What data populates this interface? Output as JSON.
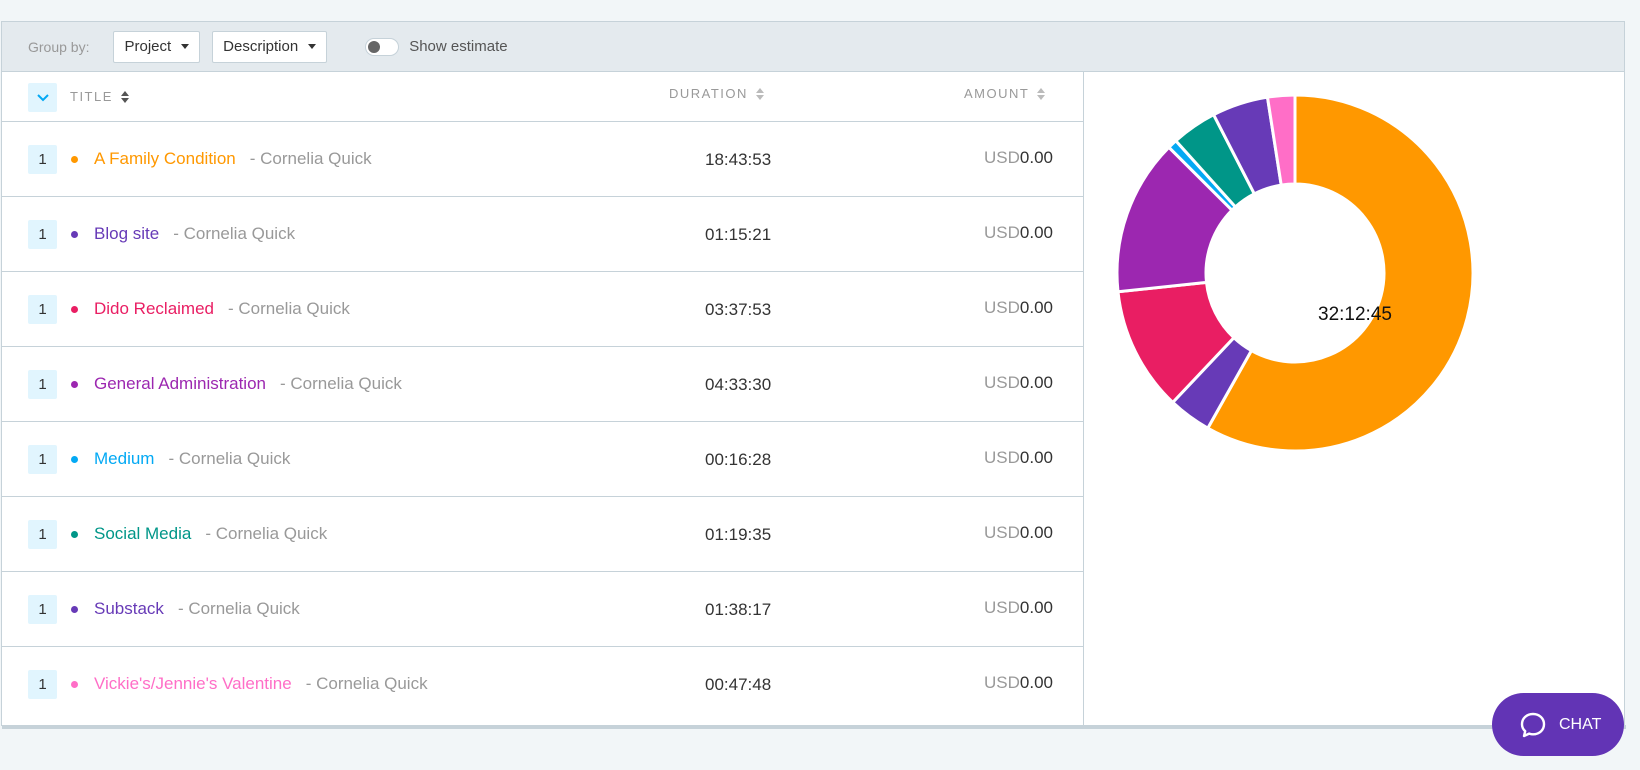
{
  "toolbar": {
    "group_by_label": "Group by:",
    "group_primary": "Project",
    "group_secondary": "Description",
    "show_estimate_label": "Show estimate"
  },
  "table": {
    "headers": {
      "title": "TITLE",
      "duration": "DURATION",
      "amount": "AMOUNT"
    },
    "rows": [
      {
        "count": "1",
        "project": "A Family Condition",
        "client": "- Cornelia Quick",
        "duration": "18:43:53",
        "currency": "USD",
        "amount": "0.00",
        "color": "#ff9800"
      },
      {
        "count": "1",
        "project": "Blog site",
        "client": "- Cornelia Quick",
        "duration": "01:15:21",
        "currency": "USD",
        "amount": "0.00",
        "color": "#673ab7"
      },
      {
        "count": "1",
        "project": "Dido Reclaimed",
        "client": "- Cornelia Quick",
        "duration": "03:37:53",
        "currency": "USD",
        "amount": "0.00",
        "color": "#e91e63"
      },
      {
        "count": "1",
        "project": "General Administration",
        "client": "- Cornelia Quick",
        "duration": "04:33:30",
        "currency": "USD",
        "amount": "0.00",
        "color": "#9c27b0"
      },
      {
        "count": "1",
        "project": "Medium",
        "client": "- Cornelia Quick",
        "duration": "00:16:28",
        "currency": "USD",
        "amount": "0.00",
        "color": "#03a9f4"
      },
      {
        "count": "1",
        "project": "Social Media",
        "client": "- Cornelia Quick",
        "duration": "01:19:35",
        "currency": "USD",
        "amount": "0.00",
        "color": "#009688"
      },
      {
        "count": "1",
        "project": "Substack",
        "client": "- Cornelia Quick",
        "duration": "01:38:17",
        "currency": "USD",
        "amount": "0.00",
        "color": "#673ab7"
      },
      {
        "count": "1",
        "project": "Vickie's/Jennie's Valentine",
        "client": "- Cornelia Quick",
        "duration": "00:47:48",
        "currency": "USD",
        "amount": "0.00",
        "color": "#ff6ec7"
      }
    ]
  },
  "chart_data": {
    "type": "pie",
    "center_label": "32:12:45",
    "unit": "seconds",
    "slices": [
      {
        "name": "A Family Condition",
        "value": 67433,
        "color": "#ff9800"
      },
      {
        "name": "Blog site",
        "value": 4521,
        "color": "#673ab7"
      },
      {
        "name": "Dido Reclaimed",
        "value": 13073,
        "color": "#e91e63"
      },
      {
        "name": "General Administration",
        "value": 16410,
        "color": "#9c27b0"
      },
      {
        "name": "Medium",
        "value": 988,
        "color": "#03a9f4"
      },
      {
        "name": "Social Media",
        "value": 4775,
        "color": "#009688"
      },
      {
        "name": "Substack",
        "value": 5897,
        "color": "#673ab7"
      },
      {
        "name": "Vickie's/Jennie's Valentine",
        "value": 2868,
        "color": "#ff6ec7"
      }
    ]
  },
  "chat": {
    "label": "CHAT"
  }
}
